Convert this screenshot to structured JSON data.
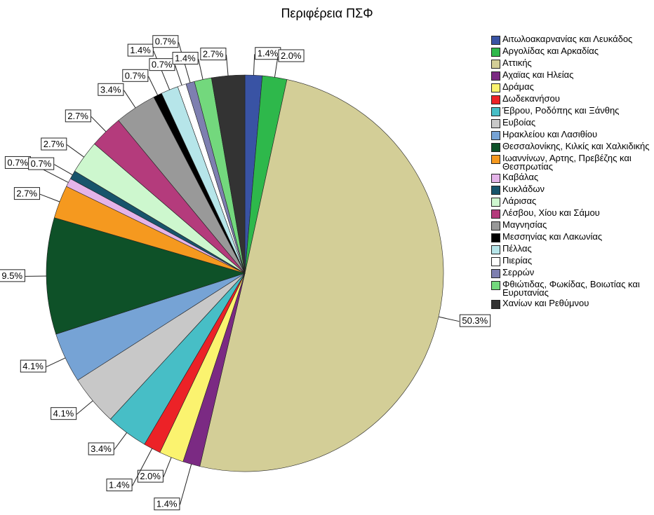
{
  "chart_data": {
    "type": "pie",
    "title": "Περιφέρεια ΠΣΦ",
    "categories": [
      "Αιτωλοακαρνανίας και Λευκάδος",
      "Αργολίδας και Αρκαδίας",
      "Αττικής",
      "Αχαϊας και Ηλείας",
      "Δράμας",
      "Δωδεκανήσου",
      "Έβρου, Ροδόπης και Ξάνθης",
      "Ευβοίας",
      "Ηρακλείου και Λασιθίου",
      "Θεσσαλονίκης, Κιλκίς και Χαλκιδικής",
      "Ιωαννίνων, Αρτης, Πρεβέζης και Θεσπρωτίας",
      "Καβάλας",
      "Κυκλάδων",
      "Λάρισας",
      "Λέσβου, Χίου και Σάμου",
      "Μαγνησίας",
      "Μεσσηνίας και Λακωνίας",
      "Πέλλας",
      "Πιερίας",
      "Σερρών",
      "Φθιώτιδας, Φωκίδας, Βοιωτίας και Ευρυτανίας",
      "Χανίων και Ρεθύμνου"
    ],
    "values": [
      1.4,
      2.0,
      50.3,
      1.4,
      2.0,
      1.4,
      3.4,
      4.1,
      4.1,
      9.5,
      2.7,
      0.7,
      0.7,
      2.7,
      2.7,
      3.4,
      0.7,
      1.4,
      0.7,
      0.7,
      1.4,
      2.7
    ],
    "value_labels": [
      "1.4%",
      "2.0%",
      "50.3%",
      "1.4%",
      "2.0%",
      "1.4%",
      "3.4%",
      "4.1%",
      "4.1%",
      "9.5%",
      "2.7%",
      "0.7%",
      "0.7%",
      "2.7%",
      "2.7%",
      "3.4%",
      "0.7%",
      "1.4%",
      "0.7%",
      "0.7%",
      "1.4%",
      "2.7%"
    ],
    "colors": [
      "#3953a4",
      "#2eb84b",
      "#d3ce97",
      "#7b2a83",
      "#fbf36f",
      "#ec2227",
      "#47bec6",
      "#c8c8c8",
      "#76a3d5",
      "#0e5128",
      "#f5991f",
      "#e4b4e9",
      "#17546b",
      "#cdf7ce",
      "#b43b7c",
      "#999999",
      "#000000",
      "#b6e5e9",
      "#ffffff",
      "#7e7fb0",
      "#73d87d",
      "#333333"
    ],
    "legend": "right"
  }
}
